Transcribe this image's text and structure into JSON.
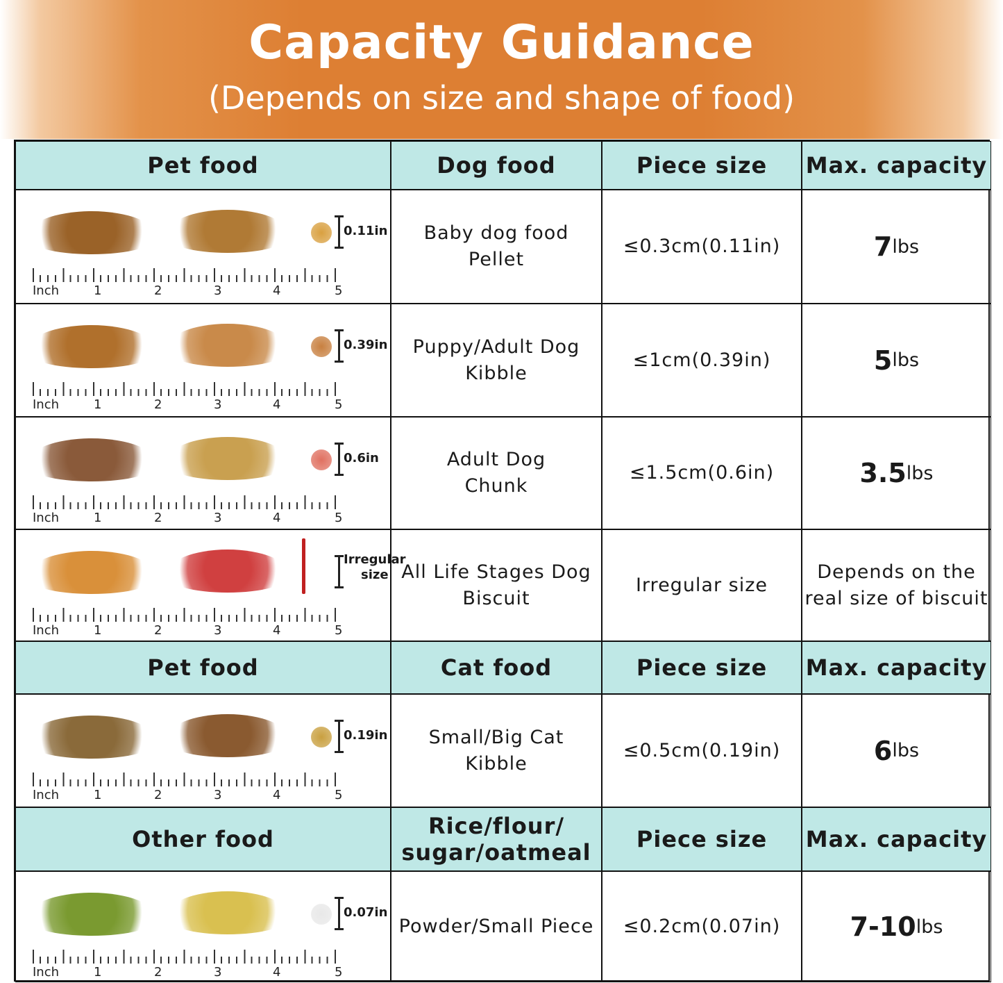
{
  "header": {
    "title": "Capacity Guidance",
    "subtitle": "(Depends on size and shape of food)"
  },
  "colors": {
    "banner": "#dd7f33",
    "header_row": "#bfe8e6"
  },
  "ruler": {
    "unit": "Inch",
    "ticks": [
      "1",
      "2",
      "3",
      "4",
      "5"
    ]
  },
  "sections": [
    {
      "headers": [
        "Pet food",
        "Dog food",
        "Piece size",
        "Max. capacity"
      ],
      "rows": [
        {
          "piece_label": "0.11in",
          "food": "Baby dog food\nPellet",
          "size": "≤0.3cm(0.11in)",
          "cap_num": "7",
          "cap_unit": "lbs",
          "pile_colors": [
            "#9a6228",
            "#b07a35"
          ],
          "piece_color": "#d9a040"
        },
        {
          "piece_label": "0.39in",
          "food": "Puppy/Adult Dog\nKibble",
          "size": "≤1cm(0.39in)",
          "cap_num": "5",
          "cap_unit": "lbs",
          "pile_colors": [
            "#b0702c",
            "#c98a4a"
          ],
          "piece_color": "#c88040"
        },
        {
          "piece_label": "0.6in",
          "food": "Adult Dog\nChunk",
          "size": "≤1.5cm(0.6in)",
          "cap_num": "3.5",
          "cap_unit": "lbs",
          "pile_colors": [
            "#8a5a3a",
            "#c9a050"
          ],
          "piece_color": "#e07060"
        },
        {
          "piece_label": "Irregular\nsize",
          "food": "All Life Stages Dog\nBiscuit",
          "size": "Irregular size",
          "cap_text": "Depends on the\nreal size of biscuit",
          "pile_colors": [
            "#d9903a",
            "#d04040"
          ],
          "piece_color": "#c02020"
        }
      ]
    },
    {
      "headers": [
        "Pet food",
        "Cat food",
        "Piece size",
        "Max. capacity"
      ],
      "rows": [
        {
          "piece_label": "0.19in",
          "food": "Small/Big Cat\nKibble",
          "size": "≤0.5cm(0.19in)",
          "cap_num": "6",
          "cap_unit": "lbs",
          "pile_colors": [
            "#8a6a3a",
            "#8a5a30"
          ],
          "piece_color": "#c9a040"
        }
      ]
    },
    {
      "headers": [
        "Other food",
        "Rice/flour/\nsugar/oatmeal",
        "Piece size",
        "Max. capacity"
      ],
      "rows": [
        {
          "piece_label": "0.07in",
          "food": "Powder/Small Piece",
          "size": "≤0.2cm(0.07in)",
          "cap_num": "7-10",
          "cap_unit": "lbs",
          "pile_colors": [
            "#7a9a30",
            "#d9c050"
          ],
          "piece_color": "#e8e8e8"
        }
      ]
    }
  ]
}
